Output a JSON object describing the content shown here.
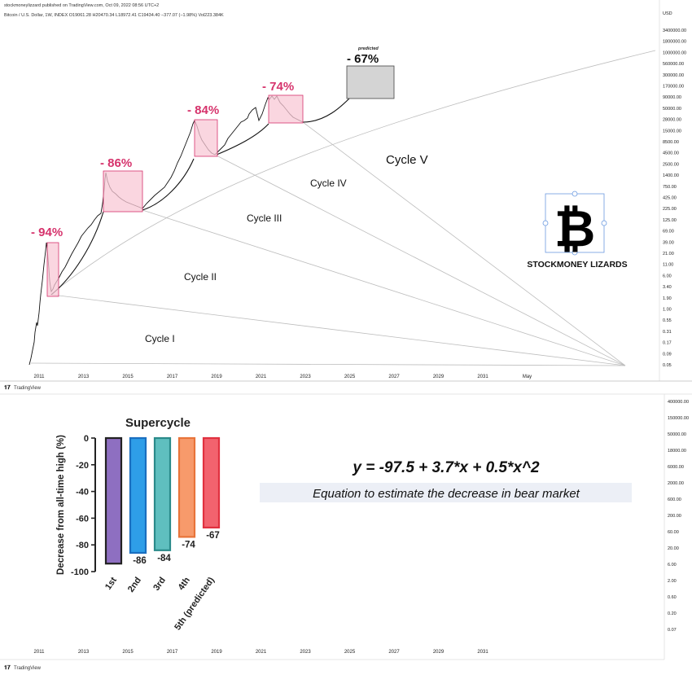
{
  "header": {
    "publisher": "stockmoneylizzard published on TradingView.com, Oct 09, 2022 08:56 UTC+2",
    "symbol_line": "Bitcoin / U.S. Dollar, 1W, INDEX O19061.28 H20470.34 L18972.41 C19434.40 −377.07 (−1.98%) Vol223.384K"
  },
  "top_panel": {
    "currency": "USD",
    "price_axis": [
      "3400000.00",
      "1800000.00",
      "1000000.00",
      "560000.00",
      "300000.00",
      "170000.00",
      "90000.00",
      "50000.00",
      "28000.00",
      "15000.00",
      "8500.00",
      "4500.00",
      "2500.00",
      "1400.00",
      "750.00",
      "425.00",
      "225.00",
      "125.00",
      "69.00",
      "39.00",
      "21.00",
      "11.00",
      "6.00",
      "3.40",
      "1.90",
      "1.00",
      "0.55",
      "0.31",
      "0.17",
      "0.09",
      "0.05"
    ],
    "time_axis": [
      "2011",
      "2013",
      "2015",
      "2017",
      "2019",
      "2021",
      "2023",
      "2025",
      "2027",
      "2029",
      "2031",
      "May"
    ],
    "drawdowns": [
      {
        "label": "- 94%",
        "color": "#d6336c"
      },
      {
        "label": "- 86%",
        "color": "#d6336c"
      },
      {
        "label": "- 84%",
        "color": "#d6336c"
      },
      {
        "label": "- 74%",
        "color": "#d6336c"
      },
      {
        "label": "- 67%",
        "color": "#111111",
        "note": "predicted"
      }
    ],
    "cycles": [
      "Cycle I",
      "Cycle II",
      "Cycle III",
      "Cycle IV",
      "Cycle V"
    ],
    "logo_text": "STOCKMONEY LIZARDS",
    "logo_icon": "bitcoin-icon",
    "footer_brand": "TradingView"
  },
  "bottom_panel": {
    "price_axis": [
      "400000.00",
      "150000.00",
      "50000.00",
      "18000.00",
      "6000.00",
      "2000.00",
      "600.00",
      "200.00",
      "60.00",
      "20.00",
      "6.00",
      "2.00",
      "0.60",
      "0.20",
      "0.07"
    ],
    "time_axis": [
      "2011",
      "2013",
      "2015",
      "2017",
      "2019",
      "2021",
      "2023",
      "2025",
      "2027",
      "2029",
      "2031"
    ],
    "equation": "y = -97.5 + 3.7*x + 0.5*x^2",
    "equation_caption": "Equation to estimate the decrease in bear market",
    "footer_brand": "TradingView"
  },
  "chart_data": {
    "type": "bar",
    "title": "Supercycle",
    "ylabel": "Decrease from all-time high (%)",
    "xlabel": "",
    "ylim": [
      -100,
      0
    ],
    "yticks": [
      0,
      -20,
      -40,
      -60,
      -80,
      -100
    ],
    "categories": [
      "1st",
      "2nd",
      "3rd",
      "4th",
      "5th (predicted)"
    ],
    "values": [
      -94,
      -86,
      -84,
      -74,
      -67
    ],
    "value_labels": [
      "",
      "-86",
      "-84",
      "-74",
      "-67"
    ],
    "bar_fill_colors": [
      "#8e6fc1",
      "#2e9ee8",
      "#5fbfbf",
      "#f79a6b",
      "#f2636e"
    ],
    "bar_edge_colors": [
      "#222222",
      "#1a6fc0",
      "#2a8a8a",
      "#e8743a",
      "#e0313f"
    ]
  }
}
